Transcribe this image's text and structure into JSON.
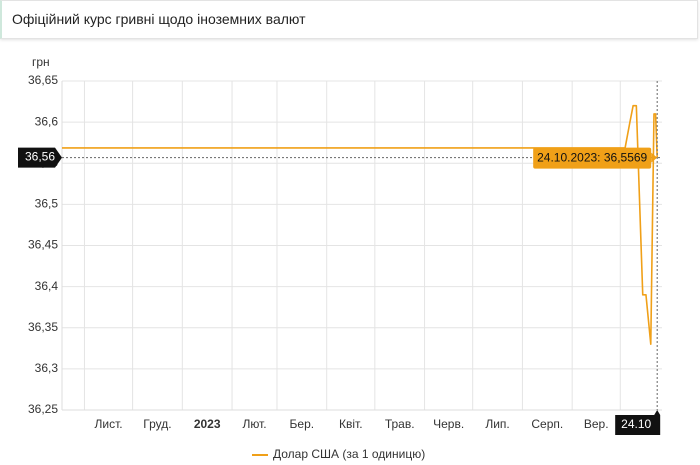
{
  "chart_data": {
    "type": "line",
    "title": "Офіційний курс гривні щодо іноземних валют",
    "y_label": "грн",
    "x": [
      "2022-10-18",
      "2023-10-01",
      "2023-10-04",
      "2023-10-07",
      "2023-10-09",
      "2023-10-11",
      "2023-10-15",
      "2023-10-17",
      "2023-10-20",
      "2023-10-22",
      "2023-10-23",
      "2023-10-24"
    ],
    "series": [
      {
        "name": "Долар США (за 1 одиницю)",
        "color": "#f0a018",
        "values": [
          36.5686,
          36.5686,
          36.5686,
          36.6,
          36.62,
          36.62,
          36.39,
          36.39,
          36.33,
          36.61,
          36.61,
          36.5569
        ]
      }
    ],
    "xlim": [
      "2022-10-18",
      "2023-10-27"
    ],
    "xticks": [
      {
        "value": "2022-11-01",
        "label": "Лист."
      },
      {
        "value": "2022-12-01",
        "label": "Груд."
      },
      {
        "value": "2023-01-01",
        "label": "2023"
      },
      {
        "value": "2023-02-01",
        "label": "Лют."
      },
      {
        "value": "2023-03-01",
        "label": "Бер."
      },
      {
        "value": "2023-04-01",
        "label": "Квіт."
      },
      {
        "value": "2023-05-01",
        "label": "Трав."
      },
      {
        "value": "2023-06-01",
        "label": "Черв."
      },
      {
        "value": "2023-07-01",
        "label": "Лип."
      },
      {
        "value": "2023-08-01",
        "label": "Серп."
      },
      {
        "value": "2023-09-01",
        "label": "Вер."
      },
      {
        "value": "2023-10-01",
        "label": null
      }
    ],
    "ylim": [
      36.25,
      36.65
    ],
    "yticks": [
      {
        "value": 36.25,
        "label": "36,25"
      },
      {
        "value": 36.3,
        "label": "36,3"
      },
      {
        "value": 36.35,
        "label": "36,35"
      },
      {
        "value": 36.4,
        "label": "36,4"
      },
      {
        "value": 36.45,
        "label": "36,45"
      },
      {
        "value": 36.5,
        "label": "36,5"
      },
      {
        "value": 36.55,
        "label": "36,55"
      },
      {
        "value": 36.6,
        "label": "36,6"
      },
      {
        "value": 36.65,
        "label": "36,65"
      }
    ],
    "grid": true,
    "crosshair": {
      "x": "2023-10-24",
      "y": 36.5569,
      "x_label": "24.10",
      "y_label": "36,56",
      "tooltip": "24.10.2023: 36,5569"
    }
  }
}
